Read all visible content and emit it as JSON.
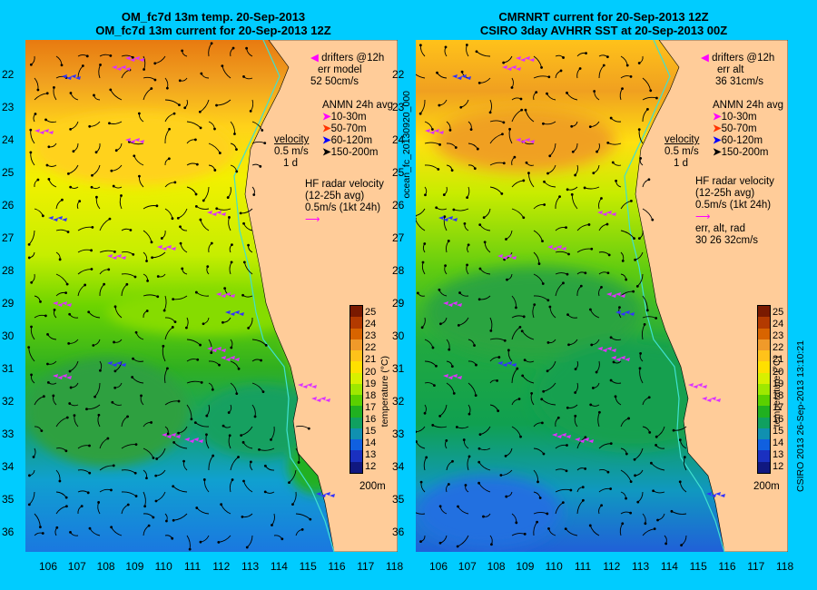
{
  "left_panel": {
    "title_line1": "OM_fc7d 13m temp. 20-Sep-2013",
    "title_line2": "OM_fc7d 13m current for 20-Sep-2013 12Z",
    "legend": {
      "drifters": "drifters @12h",
      "err_label": "err model",
      "err_values": "52 50cm/s",
      "anmn_title": "ANMN 24h avg",
      "anmn_items": [
        "10-30m",
        "50-70m",
        "60-120m",
        "150-200m"
      ],
      "velocity_title": "velocity",
      "velocity_scale": "0.5 m/s",
      "velocity_time": "1 d",
      "hf_title": "HF radar velocity",
      "hf_avg": "(12-25h avg)",
      "hf_scale": "0.5m/s (1kt 24h)"
    },
    "depth": "200m"
  },
  "right_panel": {
    "title_line1": "CMRNRT current for 20-Sep-2013 12Z",
    "title_line2": "CSIRO 3day AVHRR SST at 20-Sep-2013 00Z",
    "legend": {
      "drifters": "drifters @12h",
      "err_label": "err alt",
      "err_values": "36 31cm/s",
      "anmn_title": "ANMN 24h avg",
      "anmn_items": [
        "10-30m",
        "50-70m",
        "60-120m",
        "150-200m"
      ],
      "velocity_title": "velocity",
      "velocity_scale": "0.5 m/s",
      "velocity_time": "1 d",
      "hf_title": "HF radar velocity",
      "hf_avg": "(12-25h avg)",
      "hf_scale": "0.5m/s (1kt 24h)",
      "err3_label": "err, alt, rad",
      "err3_values": "30 26 32cm/s"
    },
    "depth": "200m"
  },
  "axes": {
    "lat_ticks": [
      "22",
      "23",
      "24",
      "25",
      "26",
      "27",
      "28",
      "29",
      "30",
      "31",
      "32",
      "33",
      "34",
      "35",
      "36"
    ],
    "lon_ticks": [
      "106",
      "107",
      "108",
      "109",
      "110",
      "111",
      "112",
      "113",
      "114",
      "115",
      "116",
      "117",
      "118"
    ]
  },
  "colorbar": {
    "ticks": [
      "25",
      "24",
      "23",
      "22",
      "21",
      "20",
      "19",
      "18",
      "17",
      "16",
      "15",
      "14",
      "13",
      "12"
    ],
    "label": "temperature (°C)",
    "colors": [
      "#7a1a00",
      "#b33a00",
      "#d86400",
      "#f09a2a",
      "#ffc21a",
      "#ffe000",
      "#d8f000",
      "#9ee800",
      "#5ad000",
      "#20b020",
      "#10a060",
      "#1090b0",
      "#1060e0",
      "#1a30c0",
      "#101880"
    ]
  },
  "side_text": {
    "ocean_fc": "ocean_fc_20130920_000",
    "credit": "CSIRO 2013   26-Sep-2013 13:10:21"
  },
  "colors": {
    "background": "#00ccff",
    "land": "#ffcc99",
    "anmn_10_30": "#ff00ff",
    "anmn_50_70": "#ff3300",
    "anmn_60_120": "#0000ff",
    "anmn_150_200": "#000000",
    "drifter": "#cc33ff"
  }
}
